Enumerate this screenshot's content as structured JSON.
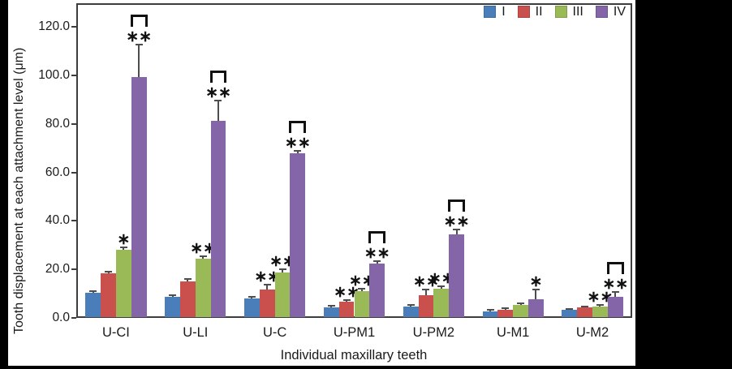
{
  "chart_data": {
    "type": "bar",
    "title": "",
    "xlabel": "Individual maxillary teeth",
    "ylabel": "Tooth displacement at each attachment level (μm)",
    "ylim": [
      0,
      129.8
    ],
    "grid": false,
    "legend_position": "top-right-inside",
    "yticks": [
      {
        "value": 0,
        "label": "0.0"
      },
      {
        "value": 20,
        "label": "20.0"
      },
      {
        "value": 40,
        "label": "40.0"
      },
      {
        "value": 60,
        "label": "60.0"
      },
      {
        "value": 80,
        "label": "80.0"
      },
      {
        "value": 100,
        "label": "100.0"
      },
      {
        "value": 120,
        "label": "120.0"
      }
    ],
    "categories": [
      "U-CI",
      "U-LI",
      "U-C",
      "U-PM1",
      "U-PM2",
      "U-M1",
      "U-M2"
    ],
    "series": [
      {
        "name": "I",
        "color": "#4A7EBB",
        "values": [
          10.3,
          8.6,
          8.1,
          4.4,
          4.8,
          2.8,
          3.2
        ],
        "errors": [
          0.8,
          0.8,
          0.6,
          0.5,
          0.6,
          0.4,
          0.5
        ],
        "sig": [
          "",
          "",
          "",
          "",
          "",
          "",
          ""
        ],
        "brackets": [
          false,
          false,
          false,
          false,
          false,
          false,
          false
        ]
      },
      {
        "name": "II",
        "color": "#C9504C",
        "values": [
          18.4,
          15.2,
          11.8,
          6.6,
          9.2,
          3.5,
          4.2
        ],
        "errors": [
          0.7,
          0.9,
          1.9,
          0.8,
          2.5,
          0.5,
          0.5
        ],
        "sig": [
          "",
          "",
          "**",
          "**",
          "**",
          "",
          ""
        ],
        "brackets": [
          false,
          false,
          false,
          false,
          false,
          false,
          false
        ]
      },
      {
        "name": "III",
        "color": "#9ABA58",
        "values": [
          28.1,
          24.4,
          18.8,
          11.2,
          11.9,
          5.4,
          4.8
        ],
        "errors": [
          1.0,
          1.0,
          1.2,
          1.0,
          1.0,
          0.7,
          0.6
        ],
        "sig": [
          "*",
          "**",
          "**",
          "**",
          "**",
          "",
          "**"
        ],
        "brackets": [
          false,
          false,
          false,
          false,
          false,
          false,
          false
        ]
      },
      {
        "name": "IV",
        "color": "#8465A8",
        "values": [
          99.4,
          81.3,
          68.0,
          22.4,
          34.3,
          7.6,
          8.8
        ],
        "errors": [
          13.2,
          8.4,
          0.8,
          1.0,
          2.2,
          4.0,
          1.9
        ],
        "sig": [
          "**",
          "**",
          "**",
          "**",
          "**",
          "*",
          "**"
        ],
        "brackets": [
          true,
          true,
          true,
          true,
          true,
          false,
          true
        ]
      }
    ],
    "legend": [
      "I",
      "II",
      "III",
      "IV"
    ]
  }
}
